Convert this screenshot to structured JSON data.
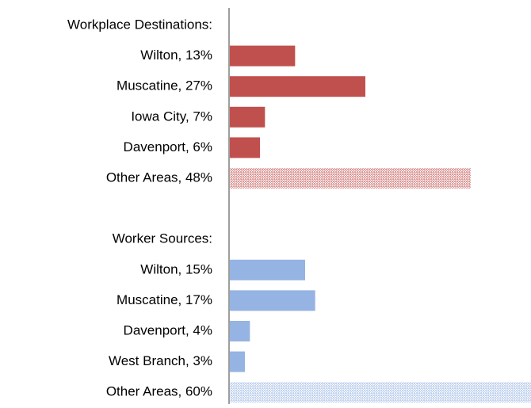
{
  "chart_data": {
    "type": "bar",
    "orientation": "horizontal",
    "xlim": [
      0,
      60
    ],
    "groups": [
      {
        "label": "Workplace Destinations:",
        "color": "#c0504d",
        "categories": [
          "Wilton, 13%",
          "Muscatine, 27%",
          "Iowa City, 7%",
          "Davenport, 6%",
          "Other Areas, 48%"
        ],
        "values": [
          13,
          27,
          7,
          6,
          48
        ],
        "patterned": [
          false,
          false,
          false,
          false,
          true
        ]
      },
      {
        "label": "Worker Sources:",
        "color": "#95b3e3",
        "categories": [
          "Wilton, 15%",
          "Muscatine, 17%",
          "Davenport, 4%",
          "West Branch, 3%",
          "Other Areas, 60%"
        ],
        "values": [
          15,
          17,
          4,
          3,
          60
        ],
        "patterned": [
          false,
          false,
          false,
          false,
          true
        ]
      }
    ]
  }
}
